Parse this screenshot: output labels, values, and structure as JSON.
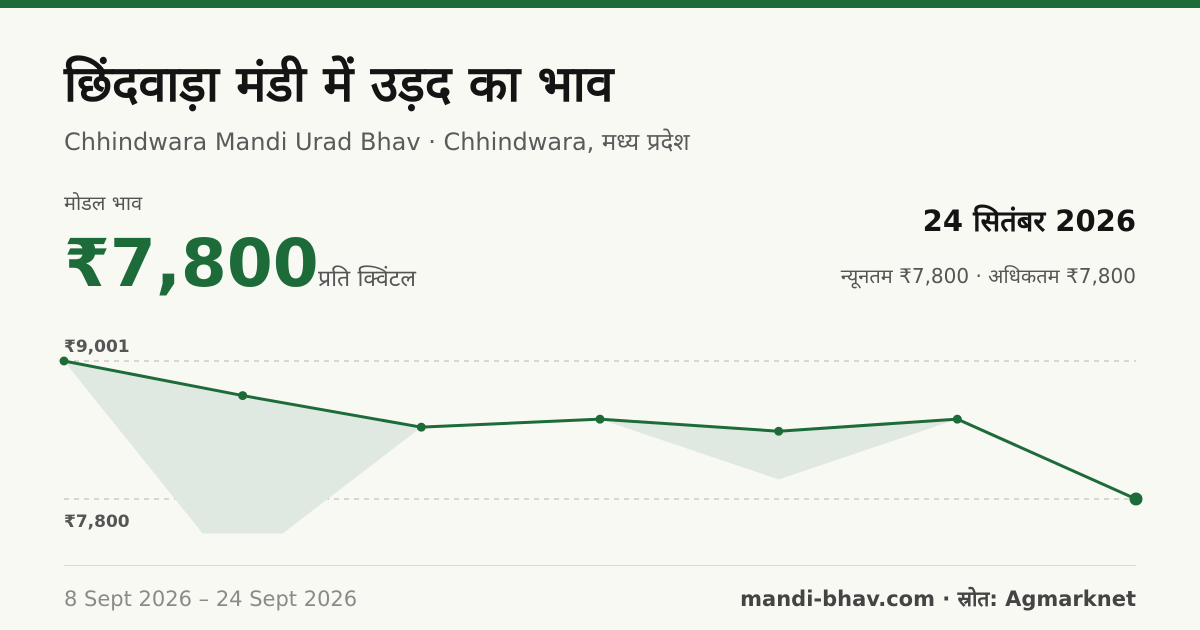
{
  "header": {
    "title": "छिंदवाड़ा मंडी में उड़द का भाव",
    "subtitle": "Chhindwara Mandi Urad Bhav · Chhindwara, मध्य प्रदेश"
  },
  "price": {
    "label": "मोडल भाव",
    "value": "₹7,800",
    "unit": "प्रति क्विंटल"
  },
  "summary": {
    "date": "24 सितंबर 2026",
    "minmax": "न्यूनतम ₹7,800 · अधिकतम ₹7,800"
  },
  "footer": {
    "range": "8 Sept 2026 – 24 Sept 2026",
    "source": "mandi-bhav.com · स्रोत: Agmarknet"
  },
  "colors": {
    "accent": "#1e6b3a",
    "fill": "#dfe9e1",
    "grid": "#b5b5b0"
  },
  "chart_data": {
    "type": "line",
    "y_ticks": [
      {
        "value": 9001,
        "label": "₹9,001"
      },
      {
        "value": 7800,
        "label": "₹7,800"
      }
    ],
    "values": [
      9001,
      8700,
      8425,
      8495,
      8390,
      8495,
      7800
    ],
    "band_low": [
      9001,
      7500,
      8425,
      8495,
      7970,
      8495,
      7800
    ],
    "ylim": [
      7500,
      9001
    ]
  }
}
